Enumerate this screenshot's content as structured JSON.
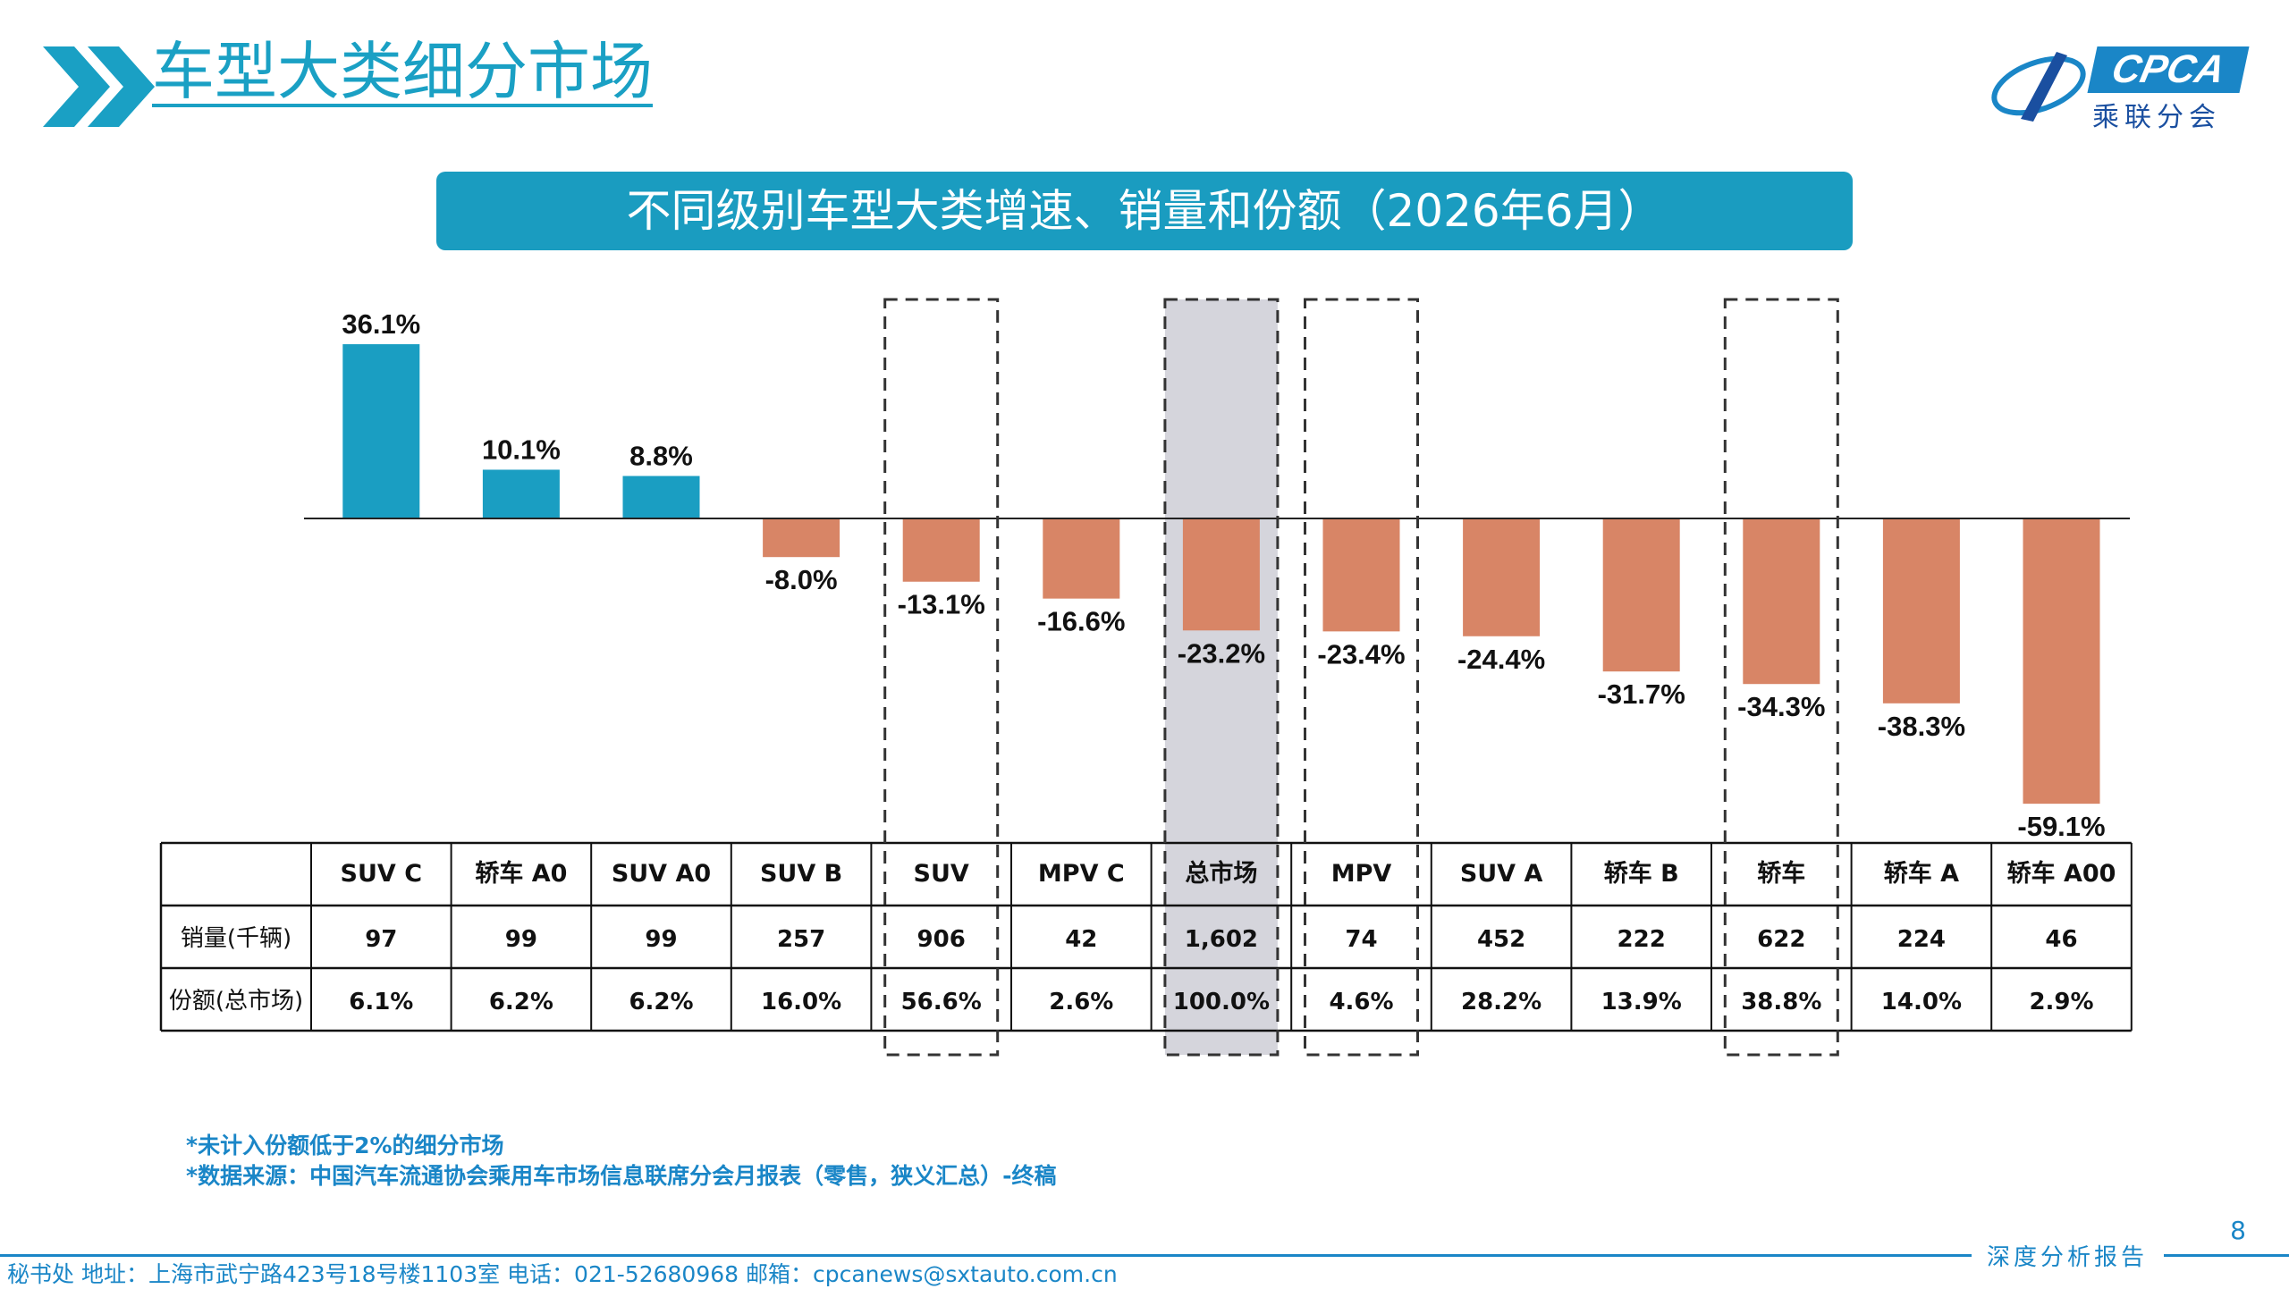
{
  "header": {
    "title": "车型大类细分市场",
    "logo_text": "CPCA",
    "logo_cn": "乘联分会"
  },
  "banner": {
    "title": "不同级别车型大类增速、销量和份额（2026年6月）"
  },
  "chart_data": {
    "type": "bar",
    "categories": [
      "SUV C",
      "轿车 A0",
      "SUV A0",
      "SUV B",
      "SUV",
      "MPV C",
      "总市场",
      "MPV",
      "SUV A",
      "轿车 B",
      "轿车",
      "轿车 A",
      "轿车 A00"
    ],
    "values": [
      36.1,
      10.1,
      8.8,
      -8.0,
      -13.1,
      -16.6,
      -23.2,
      -23.4,
      -24.4,
      -31.7,
      -34.3,
      -38.3,
      -59.1
    ],
    "value_labels": [
      "36.1%",
      "10.1%",
      "8.8%",
      "-8.0%",
      "-13.1%",
      "-16.6%",
      "-23.2%",
      "-23.4%",
      "-24.4%",
      "-31.7%",
      "-34.3%",
      "-38.3%",
      "-59.1%"
    ],
    "ylim": [
      -60,
      40
    ],
    "colors": {
      "positive": "#1a9ec2",
      "negative": "#d88566"
    },
    "highlight_dashed": [
      4,
      7,
      10
    ],
    "highlight_shaded": [
      6
    ],
    "table": {
      "row_labels": [
        "销量(千辆)",
        "份额(总市场)"
      ],
      "sales": [
        "97",
        "99",
        "99",
        "257",
        "906",
        "42",
        "1,602",
        "74",
        "452",
        "222",
        "622",
        "224",
        "46"
      ],
      "share": [
        "6.1%",
        "6.2%",
        "6.2%",
        "16.0%",
        "56.6%",
        "2.6%",
        "100.0%",
        "4.6%",
        "28.2%",
        "13.9%",
        "38.8%",
        "14.0%",
        "2.9%"
      ]
    }
  },
  "notes": [
    "*未计入份额低于2%的细分市场",
    "*数据来源：中国汽车流通协会乘用车市场信息联席分会月报表（零售，狭义汇总）-终稿"
  ],
  "footer": {
    "report_tag": "深度分析报告",
    "page_number": "8",
    "contact": "秘书处   地址：上海市武宁路423号18号楼1103室   电话：021-52680968   邮箱：cpcanews@sxtauto.com.cn"
  }
}
